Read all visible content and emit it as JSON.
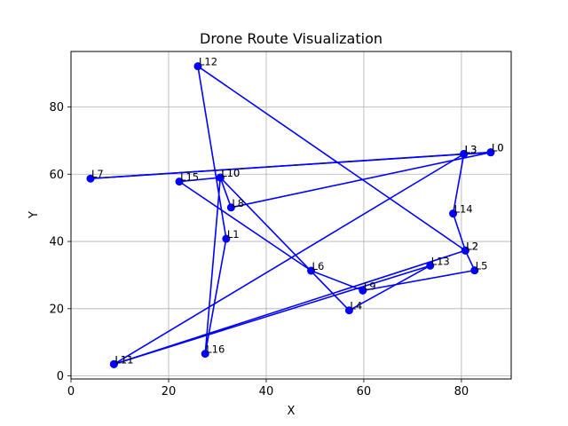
{
  "chart_data": {
    "type": "line",
    "title": "Drone Route Visualization",
    "xlabel": "X",
    "ylabel": "Y",
    "xlim": [
      0,
      90.2
    ],
    "ylim": [
      -0.9,
      96.5
    ],
    "xticks": [
      0,
      20,
      40,
      60,
      80
    ],
    "yticks": [
      0,
      20,
      40,
      60,
      80
    ],
    "grid": true,
    "line_color": "#0000ff",
    "points": [
      {
        "label": "L0",
        "x": 86.0,
        "y": 66.5
      },
      {
        "label": "L3",
        "x": 80.5,
        "y": 66.0
      },
      {
        "label": "L7",
        "x": 4.0,
        "y": 58.7
      },
      {
        "label": "L0",
        "x": 86.0,
        "y": 66.5
      },
      {
        "label": "L8",
        "x": 32.8,
        "y": 50.1
      },
      {
        "label": "L10",
        "x": 30.6,
        "y": 59.0
      },
      {
        "label": "L16",
        "x": 27.5,
        "y": 6.6
      },
      {
        "label": "L1",
        "x": 31.8,
        "y": 40.8
      },
      {
        "label": "L12",
        "x": 26.0,
        "y": 92.1
      },
      {
        "label": "L2",
        "x": 80.8,
        "y": 37.3
      },
      {
        "label": "L14",
        "x": 78.3,
        "y": 48.3
      },
      {
        "label": "L3",
        "x": 80.5,
        "y": 66.0
      },
      {
        "label": "L11",
        "x": 8.8,
        "y": 3.5
      },
      {
        "label": "L13",
        "x": 73.6,
        "y": 32.8
      },
      {
        "label": "L4",
        "x": 57.0,
        "y": 19.5
      },
      {
        "label": "L10",
        "x": 30.6,
        "y": 59.0
      },
      {
        "label": "L15",
        "x": 22.2,
        "y": 57.8
      },
      {
        "label": "L6",
        "x": 49.2,
        "y": 31.3
      },
      {
        "label": "L9",
        "x": 59.8,
        "y": 25.4
      },
      {
        "label": "L5",
        "x": 82.7,
        "y": 31.4
      },
      {
        "label": "L2",
        "x": 80.8,
        "y": 37.3
      },
      {
        "label": "L11",
        "x": 8.8,
        "y": 3.5
      }
    ]
  }
}
